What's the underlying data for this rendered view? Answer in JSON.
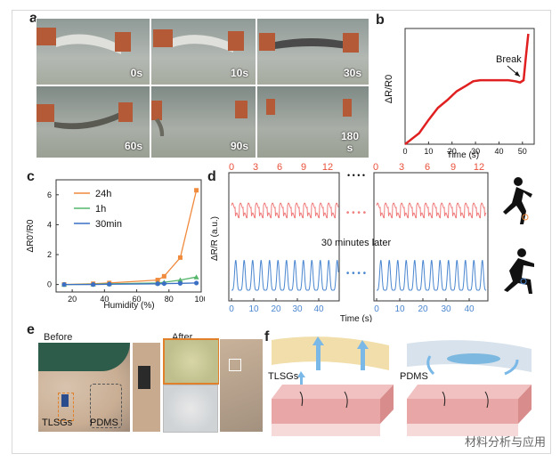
{
  "panel_labels": [
    "a",
    "b",
    "c",
    "d",
    "e",
    "f"
  ],
  "panel_a": {
    "times": [
      "0s",
      "10s",
      "30s",
      "60s",
      "90s",
      "180 s"
    ]
  },
  "panel_b": {
    "ylabel": "ΔR/R0",
    "xlabel": "Time (s)",
    "annotation": "Break",
    "x_ticks": [
      "0",
      "10",
      "20",
      "30",
      "40",
      "50"
    ],
    "line_color": "#e02020"
  },
  "panel_c": {
    "ylabel": "ΔR0'/R0",
    "xlabel": "Humidity (%)",
    "x_ticks": [
      "20",
      "40",
      "60",
      "80",
      "100"
    ],
    "y_ticks": [
      "0",
      "2",
      "4",
      "6"
    ],
    "legend": [
      {
        "label": "24h",
        "color": "#f08a3c"
      },
      {
        "label": "1h",
        "color": "#55b56a"
      },
      {
        "label": "30min",
        "color": "#3a6fc4"
      }
    ]
  },
  "panel_d": {
    "ylabel": "ΔR/R (a.u.)",
    "xlabel": "Time (s)",
    "top_ticks_left": [
      "0",
      "3",
      "6",
      "9",
      "12"
    ],
    "top_ticks_right": [
      "0",
      "3",
      "6",
      "9",
      "12"
    ],
    "bottom_ticks": [
      "0",
      "10",
      "20",
      "30",
      "40",
      "0",
      "10",
      "20",
      "30",
      "40"
    ],
    "middle_text": "30 minutes later",
    "dots": "• • • •",
    "red_color": "#f07a7a",
    "blue_color": "#4a86d0"
  },
  "panel_e": {
    "before": "Before",
    "after": "After",
    "label1": "TLSGs",
    "label2": "PDMS"
  },
  "panel_f": {
    "label1": "TLSGs",
    "label2": "PDMS"
  },
  "watermark": "材料分析与应用",
  "chart_data": [
    {
      "type": "line",
      "title": "",
      "xlabel": "Time (s)",
      "ylabel": "ΔR/R0",
      "xlim": [
        0,
        55
      ],
      "series": [
        {
          "x": [
            0,
            3,
            6,
            10,
            14,
            18,
            22,
            26,
            29,
            32,
            36,
            40,
            44,
            47,
            49,
            50.5,
            51.5,
            52.5
          ],
          "y": [
            0,
            0.05,
            0.1,
            0.22,
            0.33,
            0.4,
            0.48,
            0.53,
            0.57,
            0.58,
            0.58,
            0.58,
            0.58,
            0.57,
            0.56,
            0.58,
            0.8,
            1.0
          ]
        }
      ],
      "annotations": [
        "Break"
      ]
    },
    {
      "type": "line",
      "title": "",
      "xlabel": "Humidity (%)",
      "ylabel": "ΔR0'/R0",
      "xlim": [
        10,
        100
      ],
      "ylim": [
        -0.5,
        7
      ],
      "x": [
        15,
        33,
        43,
        73,
        77,
        87,
        97
      ],
      "series": [
        {
          "name": "24h",
          "values": [
            0,
            0.05,
            0.1,
            0.3,
            0.55,
            1.8,
            6.3
          ]
        },
        {
          "name": "1h",
          "values": [
            0,
            0.02,
            0.05,
            0.1,
            0.15,
            0.3,
            0.5
          ]
        },
        {
          "name": "30min",
          "values": [
            0,
            0,
            0.02,
            0.05,
            0.06,
            0.08,
            0.1
          ]
        }
      ]
    }
  ]
}
